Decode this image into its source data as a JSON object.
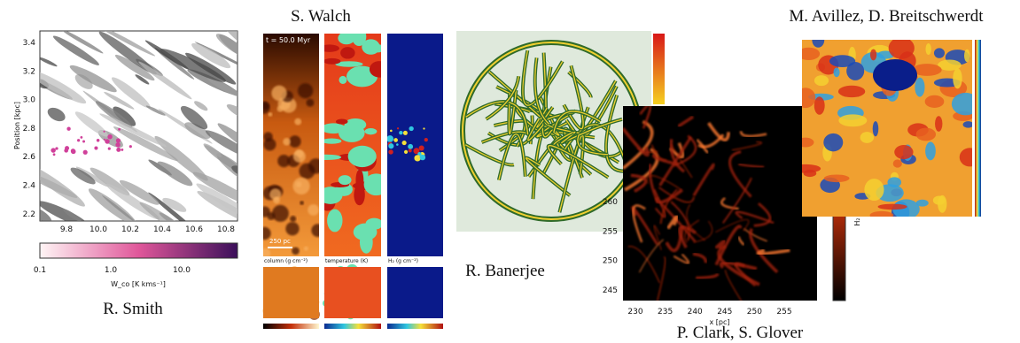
{
  "panels": [
    {
      "caption": "R. Smith",
      "y_label": "Position [kpc]",
      "y_ticks": [
        "3.4",
        "3.2",
        "3.0",
        "2.8",
        "2.6",
        "2.4",
        "2.2"
      ],
      "x_ticks": [
        "9.8",
        "10.0",
        "10.2",
        "10.4",
        "10.6",
        "10.8"
      ],
      "colorbar_ticks": [
        "0.1",
        "1.0",
        "10.0"
      ],
      "colorbar_label": "W_co [K kms⁻¹]"
    },
    {
      "caption": "S. Walch",
      "time": "t = 50.0 Myr",
      "scale": "250 pc",
      "labels": [
        "column (g cm⁻²)",
        "temperature (K)",
        "H₂ (g cm⁻²)"
      ]
    },
    {
      "caption": "R. Banerjee"
    },
    {
      "caption": "P. Clark, S. Glover",
      "x_label": "x [pc]",
      "x_ticks": [
        "230",
        "235",
        "240",
        "245",
        "250",
        "255"
      ],
      "y_ticks": [
        "260",
        "255",
        "250",
        "245"
      ],
      "colorbar_label": "H₂ column"
    },
    {
      "caption": "M. Avillez, D. Breitschwerdt"
    }
  ]
}
